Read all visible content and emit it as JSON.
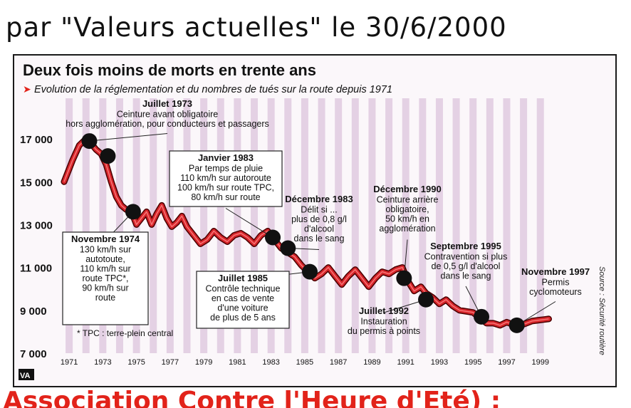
{
  "header": {
    "handwritten_title": "par \"Valeurs actuelles\" le 30/6/2000"
  },
  "footer": {
    "partial_text": "Association Contre l'Heure d'Eté) :"
  },
  "chart_data": {
    "type": "line",
    "title": "Deux fois moins de morts en trente ans",
    "subtitle": "Evolution de la réglementation et du nombres de tués sur la route depuis 1971",
    "subtitle_marker": "➤",
    "source": "Source : Sécurité routière",
    "logo_text": "VA",
    "footnote": "* TPC : terre-plein central",
    "x_ticks": [
      "1971",
      "1973",
      "1975",
      "1977",
      "1979",
      "1981",
      "1983",
      "1985",
      "1987",
      "1989",
      "1991",
      "1993",
      "1995",
      "1997",
      "1999"
    ],
    "y_ticks": [
      "7 000",
      "9 000",
      "11 000",
      "13 000",
      "15 000",
      "17 000"
    ],
    "xlim": [
      1970.7,
      1999.9
    ],
    "ylim": [
      7000,
      17700
    ],
    "series": [
      {
        "x": [
          1970.7,
          1971.2,
          1971.6,
          1972.0,
          1972.3,
          1972.6,
          1972.9,
          1973.2,
          1973.5,
          1973.8,
          1974.1,
          1974.4,
          1974.7,
          1975.0,
          1975.3,
          1975.6,
          1975.9,
          1976.2,
          1976.5,
          1976.8,
          1977.1,
          1977.4,
          1977.7,
          1978.0,
          1978.4,
          1978.8,
          1979.2,
          1979.6,
          1980.0,
          1980.4,
          1980.8,
          1981.2,
          1981.6,
          1982.0,
          1982.4,
          1982.8,
          1983.2,
          1983.6,
          1984.0,
          1984.4,
          1984.8,
          1985.2,
          1985.6,
          1986.0,
          1986.4,
          1986.8,
          1987.2,
          1987.6,
          1988.0,
          1988.4,
          1988.8,
          1989.2,
          1989.6,
          1990.0,
          1990.4,
          1990.8,
          1991.1,
          1991.5,
          1991.9,
          1992.2,
          1992.6,
          1993.0,
          1993.4,
          1993.8,
          1994.2,
          1994.6,
          1995.0,
          1995.4,
          1995.8,
          1996.2,
          1996.6,
          1997.0,
          1997.5,
          1998.0,
          1998.5,
          1999.0,
          1999.5
        ],
        "y": [
          15000,
          16000,
          16700,
          17000,
          16800,
          16500,
          16300,
          15800,
          15000,
          14300,
          13900,
          13700,
          13600,
          13000,
          13300,
          13600,
          13000,
          13500,
          13900,
          13300,
          12900,
          13100,
          13400,
          12900,
          12500,
          12100,
          12300,
          12700,
          12400,
          12200,
          12500,
          12600,
          12400,
          12100,
          12500,
          12700,
          12300,
          11900,
          11700,
          11500,
          11100,
          10800,
          10500,
          10700,
          11000,
          10600,
          10200,
          10600,
          10900,
          10500,
          10100,
          10500,
          10800,
          10700,
          10900,
          11000,
          10400,
          9900,
          10100,
          9800,
          9600,
          9300,
          9500,
          9200,
          9000,
          8950,
          8900,
          8650,
          8400,
          8400,
          8300,
          8450,
          8300,
          8350,
          8500,
          8550,
          8600
        ]
      }
    ],
    "milestones": [
      {
        "x": 1972.2,
        "y": 16900,
        "date": "Juillet 1973",
        "lines": [
          "Ceinture avant obligatoire",
          "hors agglomération, pour conducteurs et passagers"
        ]
      },
      {
        "x": 1973.3,
        "y": 16200,
        "date": "",
        "lines": []
      },
      {
        "x": 1974.8,
        "y": 13600,
        "date": "Novembre 1974",
        "lines": [
          "130 km/h sur",
          "autotoute,",
          "110 km/h sur",
          "route TPC*,",
          "90 km/h sur",
          "route"
        ]
      },
      {
        "x": 1983.1,
        "y": 12400,
        "date": "Janvier 1983",
        "lines": [
          "Par temps de pluie",
          "110 km/h sur autoroute",
          "100 km/h sur route TPC,",
          "80 km/h sur route"
        ]
      },
      {
        "x": 1984.0,
        "y": 11900,
        "date": "Décembre 1983",
        "lines": [
          "Délit si ...",
          "plus de 0,8 g/l",
          "d'alcool",
          "dans le sang"
        ]
      },
      {
        "x": 1985.3,
        "y": 10800,
        "date": "Juillet 1985",
        "lines": [
          "Contrôle technique",
          "en cas de vente",
          "d'une voiture",
          "de plus de 5 ans"
        ]
      },
      {
        "x": 1990.9,
        "y": 10500,
        "date": "Décembre 1990",
        "lines": [
          "Ceinture arrière",
          "obligatoire,",
          "50 km/h en",
          "agglomération"
        ]
      },
      {
        "x": 1992.2,
        "y": 9500,
        "date": "Juillet 1992",
        "lines": [
          "Instauration",
          "du permis à points"
        ]
      },
      {
        "x": 1995.5,
        "y": 8700,
        "date": "Septembre 1995",
        "lines": [
          "Contravention si plus",
          "de 0,5 g/l d'alcool",
          "dans le sang"
        ]
      },
      {
        "x": 1997.6,
        "y": 8300,
        "date": "Novembre 1997",
        "lines": [
          "Permis",
          "cyclomoteurs"
        ]
      }
    ],
    "colors": {
      "line": "#d6252a",
      "line_shadow": "#4a0000",
      "marker": "#111111",
      "stripe": "#dcc4dc",
      "arrow": "#e2231a"
    }
  }
}
